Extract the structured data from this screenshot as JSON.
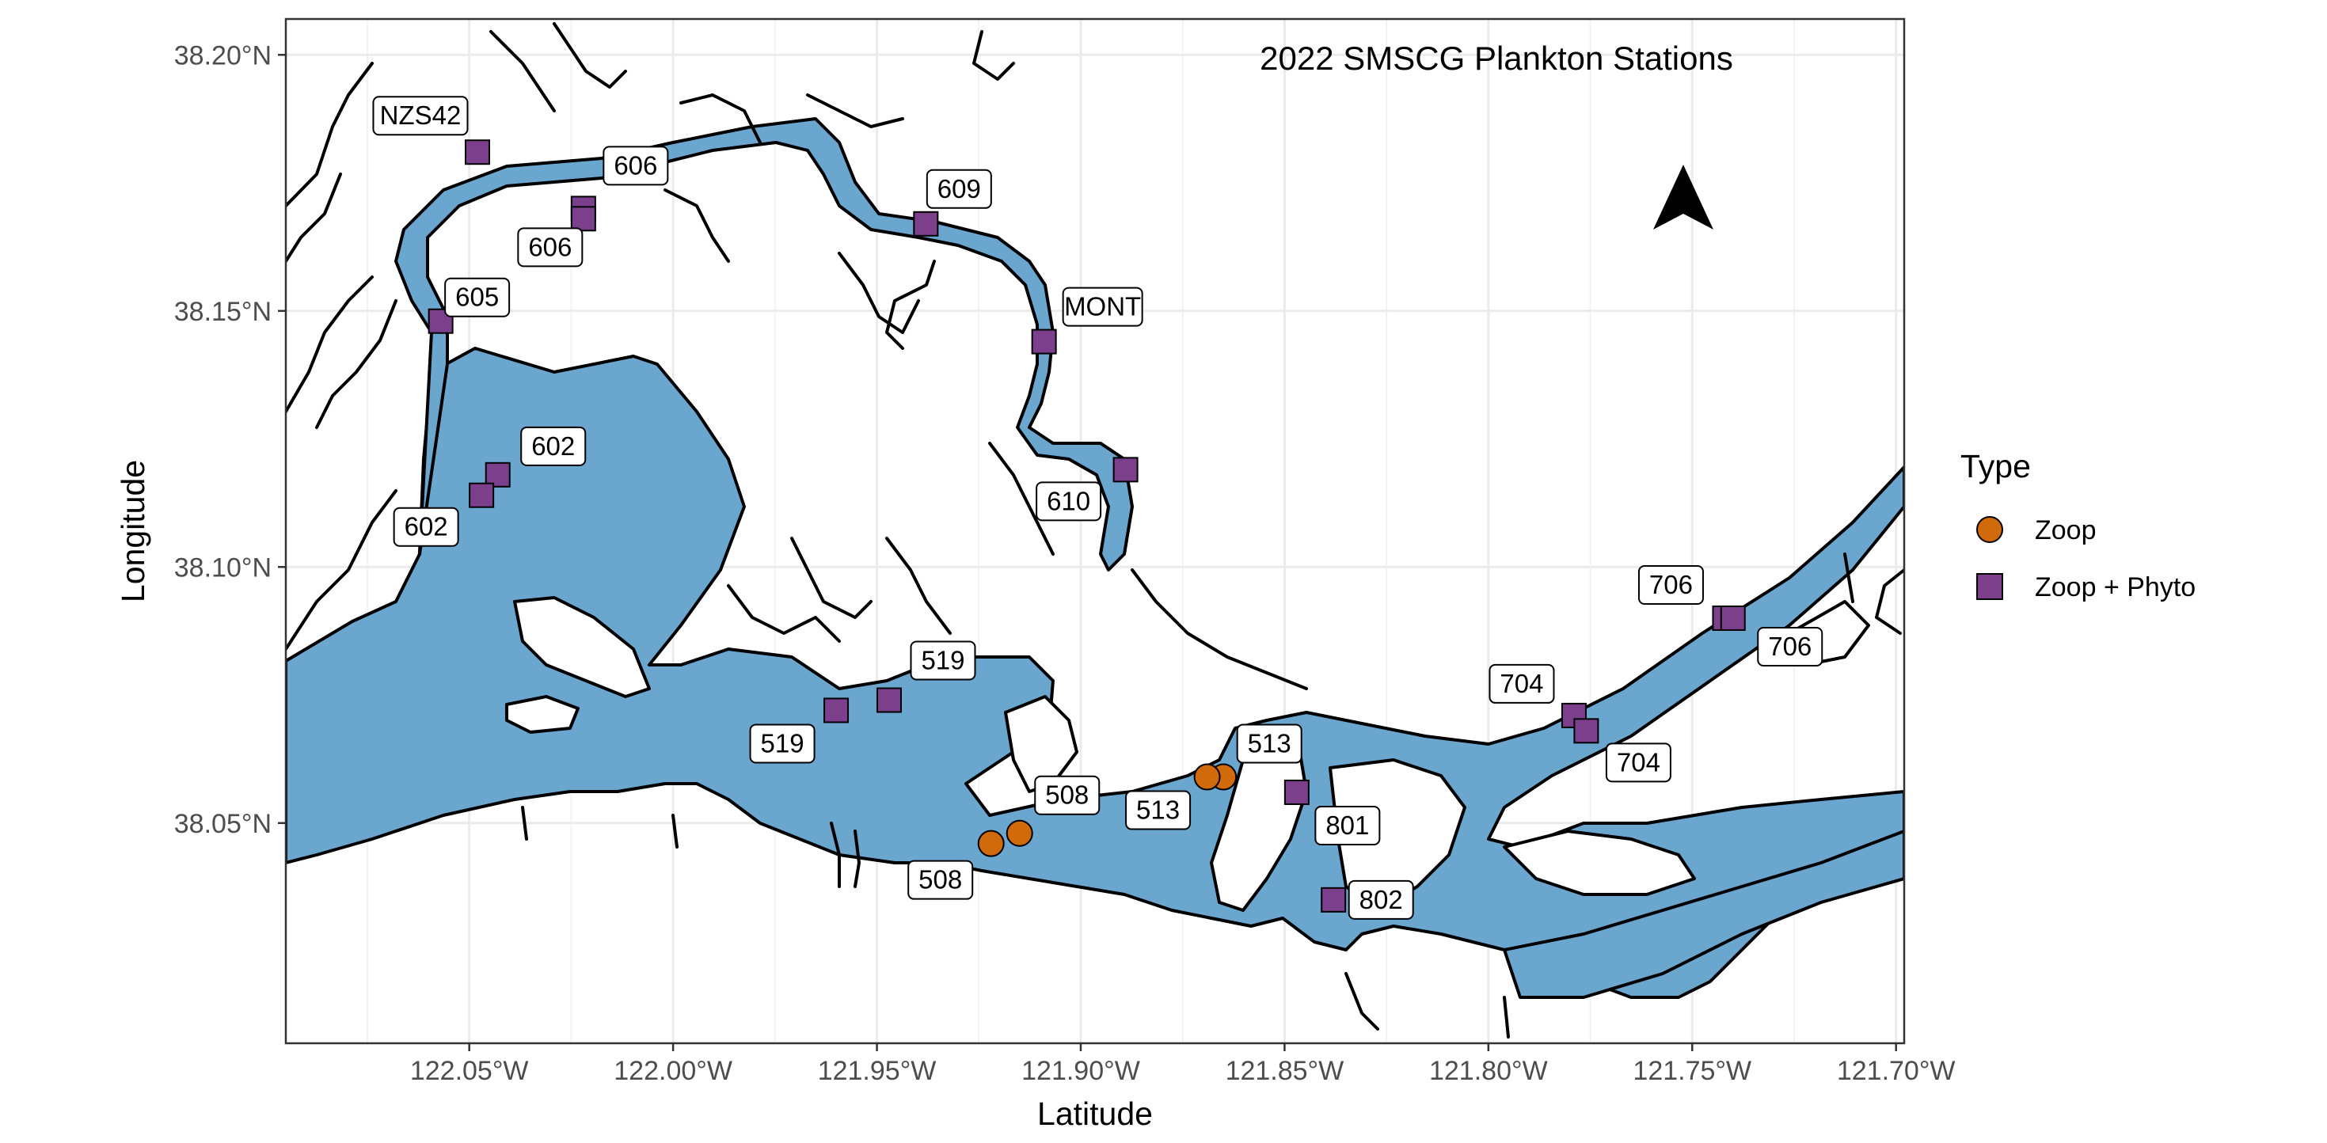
{
  "plot": {
    "title": "2022 SMSCG Plankton Stations",
    "x_axis_title": "Latitude",
    "y_axis_title": "Longitude"
  },
  "x_ticks": [
    "122.05°W",
    "122.00°W",
    "121.95°W",
    "121.90°W",
    "121.85°W",
    "121.80°W",
    "121.75°W",
    "121.70°W"
  ],
  "y_ticks": [
    "38.05°N",
    "38.10°N",
    "38.15°N",
    "38.20°N"
  ],
  "legend": {
    "title": "Type",
    "items": [
      {
        "label": "Zoop",
        "shape": "circle",
        "color": "#D16A0A"
      },
      {
        "label": "Zoop + Phyto",
        "shape": "square",
        "color": "#7B3F8C"
      }
    ]
  },
  "colors": {
    "water": "#6BA6CF",
    "shoreline": "#000000",
    "grid": "#EBEBEB",
    "panel_border": "#333333"
  },
  "icons": {
    "north_arrow": "north-arrow-icon"
  },
  "map_data": {
    "type": "scatter",
    "stations": [
      {
        "label": "NZS42",
        "type": "Zoop + Phyto",
        "lon": -122.048,
        "lat": 38.181
      },
      {
        "label": "606",
        "type": "Zoop + Phyto",
        "lon": -122.022,
        "lat": 38.17
      },
      {
        "label": "606",
        "type": "Zoop + Phyto",
        "lon": -122.022,
        "lat": 38.168
      },
      {
        "label": "609",
        "type": "Zoop + Phyto",
        "lon": -121.938,
        "lat": 38.167
      },
      {
        "label": "605",
        "type": "Zoop + Phyto",
        "lon": -122.057,
        "lat": 38.148
      },
      {
        "label": "MONT",
        "type": "Zoop + Phyto",
        "lon": -121.909,
        "lat": 38.144
      },
      {
        "label": "602",
        "type": "Zoop + Phyto",
        "lon": -122.043,
        "lat": 38.118
      },
      {
        "label": "602",
        "type": "Zoop + Phyto",
        "lon": -122.047,
        "lat": 38.114
      },
      {
        "label": "610",
        "type": "Zoop + Phyto",
        "lon": -121.889,
        "lat": 38.119
      },
      {
        "label": "706",
        "type": "Zoop + Phyto",
        "lon": -121.742,
        "lat": 38.09
      },
      {
        "label": "706",
        "type": "Zoop + Phyto",
        "lon": -121.74,
        "lat": 38.09
      },
      {
        "label": "519",
        "type": "Zoop + Phyto",
        "lon": -121.947,
        "lat": 38.074
      },
      {
        "label": "519",
        "type": "Zoop + Phyto",
        "lon": -121.96,
        "lat": 38.072
      },
      {
        "label": "704",
        "type": "Zoop + Phyto",
        "lon": -121.779,
        "lat": 38.071
      },
      {
        "label": "704",
        "type": "Zoop + Phyto",
        "lon": -121.776,
        "lat": 38.068
      },
      {
        "label": "513",
        "type": "Zoop",
        "lon": -121.865,
        "lat": 38.059
      },
      {
        "label": "513",
        "type": "Zoop",
        "lon": -121.869,
        "lat": 38.059
      },
      {
        "label": "801",
        "type": "Zoop + Phyto",
        "lon": -121.847,
        "lat": 38.056
      },
      {
        "label": "508",
        "type": "Zoop",
        "lon": -121.915,
        "lat": 38.048
      },
      {
        "label": "508",
        "type": "Zoop",
        "lon": -121.922,
        "lat": 38.046
      },
      {
        "label": "802",
        "type": "Zoop + Phyto",
        "lon": -121.838,
        "lat": 38.035
      }
    ],
    "xlim": [
      -122.095,
      -121.698
    ],
    "ylim": [
      38.007,
      38.207
    ],
    "grid": true,
    "legend_position": "right"
  }
}
